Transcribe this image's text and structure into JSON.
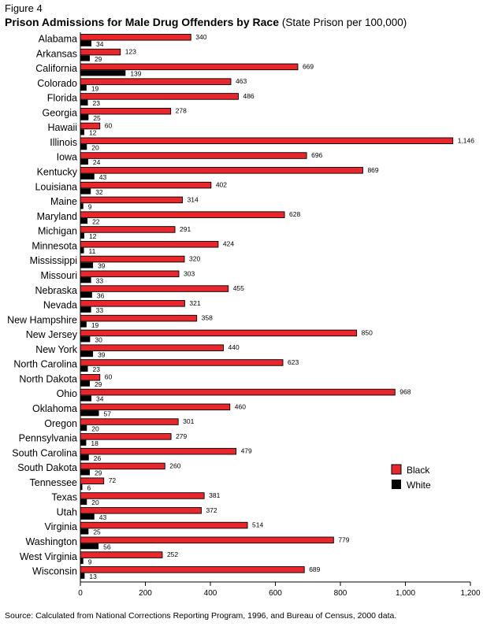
{
  "figure_label": "Figure 4",
  "title": "Prison Admissions for Male Drug Offenders by Race",
  "subtitle": "(State Prison per 100,000)",
  "source": "Source: Calculated from National Corrections Reporting Program, 1996, and Bureau of Census, 2000 data.",
  "colors": {
    "black_series": "#e8262b",
    "white_series": "#000000"
  },
  "chart_data": {
    "type": "bar",
    "orientation": "horizontal",
    "title": "Prison Admissions for Male Drug Offenders by Race",
    "subtitle": "(State Prison per 100,000)",
    "categories": [
      "Alabama",
      "Arkansas",
      "California",
      "Colorado",
      "Florida",
      "Georgia",
      "Hawaii",
      "Illinois",
      "Iowa",
      "Kentucky",
      "Louisiana",
      "Maine",
      "Maryland",
      "Michigan",
      "Minnesota",
      "Mississippi",
      "Missouri",
      "Nebraska",
      "Nevada",
      "New Hampshire",
      "New Jersey",
      "New York",
      "North Carolina",
      "North Dakota",
      "Ohio",
      "Oklahoma",
      "Oregon",
      "Pennsylvania",
      "South Carolina",
      "South Dakota",
      "Tennessee",
      "Texas",
      "Utah",
      "Virginia",
      "Washington",
      "West Virginia",
      "Wisconsin"
    ],
    "series": [
      {
        "name": "Black",
        "color": "#e8262b",
        "values": [
          340,
          123,
          669,
          463,
          486,
          278,
          60,
          1146,
          696,
          869,
          402,
          314,
          628,
          291,
          424,
          320,
          303,
          455,
          321,
          358,
          850,
          440,
          623,
          60,
          968,
          460,
          301,
          279,
          479,
          260,
          72,
          381,
          372,
          514,
          779,
          252,
          689
        ],
        "labels": [
          "340",
          "123",
          "669",
          "463",
          "486",
          "278",
          "60",
          "1,146",
          "696",
          "869",
          "402",
          "314",
          "628",
          "291",
          "424",
          "320",
          "303",
          "455",
          "321",
          "358",
          "850",
          "440",
          "623",
          "60",
          "968",
          "460",
          "301",
          "279",
          "479",
          "260",
          "72",
          "381",
          "372",
          "514",
          "779",
          "252",
          "689"
        ]
      },
      {
        "name": "White",
        "color": "#000000",
        "values": [
          34,
          29,
          139,
          19,
          23,
          25,
          12,
          20,
          24,
          43,
          32,
          9,
          22,
          12,
          11,
          39,
          33,
          36,
          33,
          19,
          30,
          39,
          23,
          29,
          34,
          57,
          20,
          18,
          26,
          29,
          6,
          20,
          43,
          25,
          56,
          9,
          13
        ],
        "labels": [
          "34",
          "29",
          "139",
          "19",
          "23",
          "25",
          "12",
          "20",
          "24",
          "43",
          "32",
          "9",
          "22",
          "12",
          "11",
          "39",
          "33",
          "36",
          "33",
          "19",
          "30",
          "39",
          "23",
          "29",
          "34",
          "57",
          "20",
          "18",
          "26",
          "29",
          "6",
          "20",
          "43",
          "25",
          "56",
          "9",
          "13"
        ]
      }
    ],
    "xlim": [
      0,
      1200
    ],
    "xticks": [
      "0",
      "200",
      "400",
      "600",
      "800",
      "1,000",
      "1,200"
    ],
    "xtick_values": [
      0,
      200,
      400,
      600,
      800,
      1000,
      1200
    ],
    "legend": {
      "position": "right",
      "entries": [
        "Black",
        "White"
      ]
    },
    "grid": false
  }
}
